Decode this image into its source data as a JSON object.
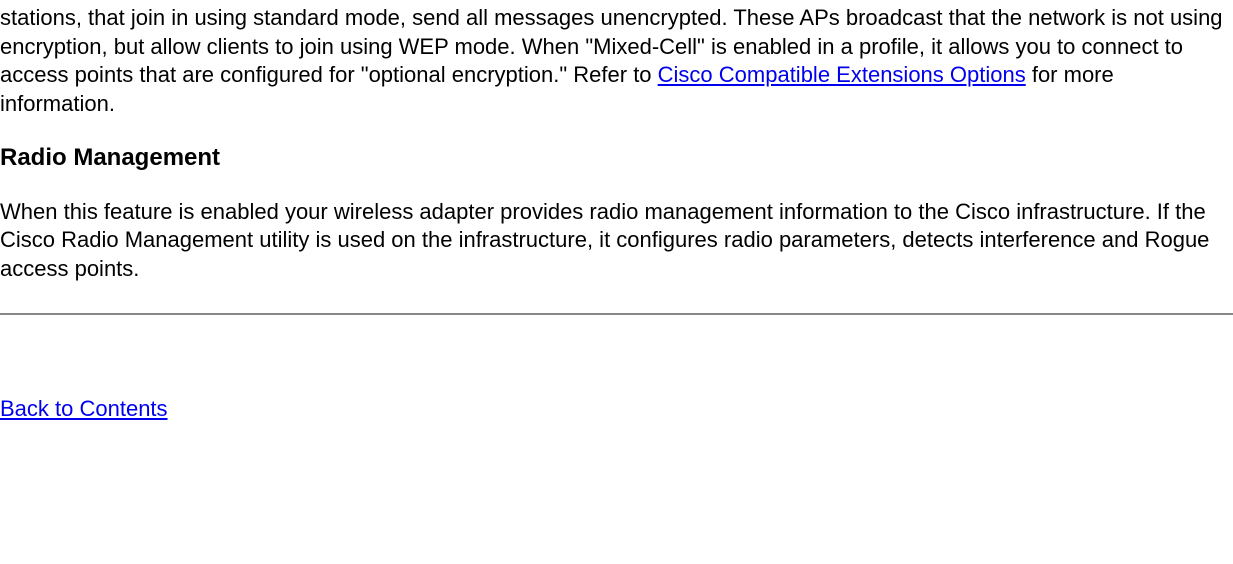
{
  "paragraph1_part1": "stations, that join in using standard mode, send all messages unencrypted. These APs broadcast that the network is not using encryption, but allow clients to join using WEP mode. When \"Mixed-Cell\" is enabled in a profile, it allows you to connect to access points that are configured for \"optional encryption.\"  Refer to ",
  "link1_text": "Cisco Compatible Extensions Options",
  "paragraph1_part2": " for more information.",
  "heading": "Radio Management",
  "paragraph2": "When this feature is enabled your wireless adapter provides radio management information to the Cisco infrastructure. If the Cisco Radio Management utility is used on the infrastructure, it configures radio parameters, detects interference and Rogue access points.",
  "back_link_text": "Back to Contents"
}
